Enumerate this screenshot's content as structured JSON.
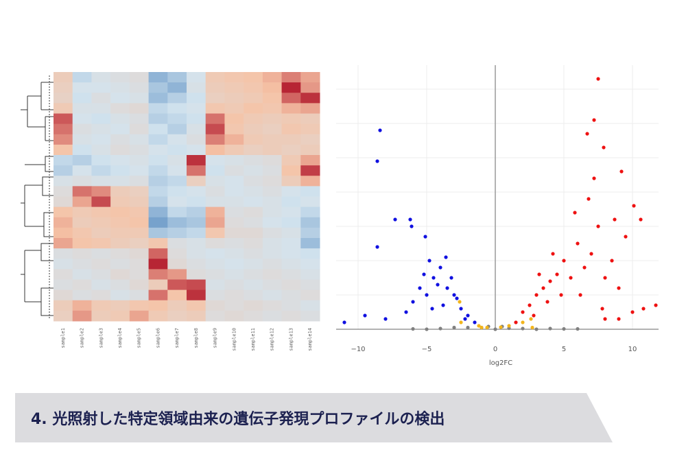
{
  "chart_data": [
    {
      "type": "heatmap",
      "categories": [
        "sample1",
        "sample2",
        "sample3",
        "sample4",
        "sample5",
        "sample6",
        "sample7",
        "sample8",
        "sample9",
        "sample10",
        "sample11",
        "sample12",
        "sample13",
        "sample14"
      ],
      "zlim": [
        -2,
        2
      ],
      "colors": [
        "#2b6cb0",
        "#d3e4ef",
        "#f6c3a6",
        "#b2182b"
      ],
      "values": [
        [
          0.3,
          -0.8,
          -0.5,
          -0.4,
          -0.3,
          -1.2,
          -1.0,
          -0.6,
          0.4,
          0.5,
          0.6,
          0.8,
          1.2,
          0.9
        ],
        [
          0.2,
          -0.6,
          -0.6,
          -0.5,
          -0.4,
          -1.0,
          -1.2,
          -0.5,
          0.3,
          0.4,
          0.5,
          0.7,
          1.9,
          1.0
        ],
        [
          0.1,
          -0.7,
          -0.4,
          -0.6,
          -0.5,
          -1.1,
          -0.9,
          -0.7,
          0.2,
          0.3,
          0.4,
          0.6,
          1.4,
          1.8
        ],
        [
          0.4,
          -0.5,
          -0.5,
          -0.3,
          -0.2,
          -0.8,
          -0.7,
          -0.6,
          0.5,
          0.4,
          0.6,
          0.5,
          0.8,
          0.9
        ],
        [
          1.5,
          -0.6,
          -0.7,
          -0.5,
          -0.4,
          -0.9,
          -0.8,
          -0.7,
          1.3,
          0.6,
          0.4,
          0.3,
          0.4,
          0.3
        ],
        [
          1.3,
          -0.4,
          -0.5,
          -0.6,
          -0.3,
          -0.7,
          -0.9,
          -0.5,
          1.6,
          0.5,
          0.3,
          0.2,
          0.5,
          0.4
        ],
        [
          1.1,
          -0.5,
          -0.6,
          -0.4,
          -0.5,
          -0.8,
          -0.6,
          -0.4,
          1.2,
          0.8,
          0.4,
          0.3,
          0.3,
          0.2
        ],
        [
          0.6,
          -0.7,
          -0.5,
          -0.3,
          -0.4,
          -0.6,
          -0.7,
          -0.6,
          0.7,
          0.4,
          0.2,
          0.3,
          0.2,
          0.3
        ],
        [
          -0.8,
          -0.9,
          -0.7,
          -0.6,
          -0.5,
          -0.7,
          -0.5,
          1.8,
          -0.6,
          -0.5,
          -0.4,
          -0.3,
          0.4,
          0.9
        ],
        [
          -0.9,
          -0.6,
          -0.8,
          -0.7,
          -0.6,
          -0.8,
          -0.6,
          1.3,
          -0.7,
          -0.4,
          -0.5,
          -0.4,
          0.6,
          1.7
        ],
        [
          -0.5,
          -0.4,
          -0.5,
          -0.5,
          -0.4,
          -0.9,
          -0.8,
          0.2,
          -0.5,
          -0.6,
          -0.4,
          -0.3,
          0.3,
          0.8
        ],
        [
          -0.3,
          1.3,
          1.1,
          0.3,
          0.2,
          -0.8,
          -0.7,
          -0.6,
          -0.4,
          -0.6,
          -0.5,
          -0.4,
          -0.6,
          -0.7
        ],
        [
          -0.2,
          0.9,
          1.6,
          0.4,
          0.3,
          -0.9,
          -0.6,
          -0.7,
          -0.5,
          -0.5,
          -0.6,
          -0.5,
          -0.7,
          -0.6
        ],
        [
          0.6,
          0.4,
          0.5,
          0.6,
          0.5,
          -1.2,
          -0.8,
          -0.9,
          0.8,
          -0.4,
          -0.3,
          -0.5,
          -0.6,
          -0.8
        ],
        [
          0.8,
          0.3,
          0.4,
          0.5,
          0.6,
          -1.4,
          -1.1,
          -1.0,
          0.9,
          -0.3,
          -0.4,
          -0.6,
          -0.7,
          -1.0
        ],
        [
          0.7,
          0.5,
          0.3,
          0.4,
          0.4,
          -1.0,
          -0.9,
          -0.8,
          0.5,
          -0.2,
          -0.2,
          -0.4,
          -0.5,
          -0.9
        ],
        [
          0.9,
          0.6,
          0.5,
          0.3,
          0.2,
          0.5,
          -0.4,
          -0.5,
          -0.3,
          -0.4,
          -0.3,
          -0.5,
          -0.6,
          -1.1
        ],
        [
          -0.4,
          -0.3,
          -0.4,
          -0.3,
          -0.2,
          1.4,
          -0.3,
          -0.5,
          -0.6,
          -0.5,
          -0.4,
          -0.5,
          -0.6,
          -0.7
        ],
        [
          -0.5,
          -0.4,
          -0.3,
          -0.4,
          -0.3,
          1.9,
          -0.2,
          -0.4,
          -0.5,
          -0.6,
          -0.5,
          -0.4,
          -0.5,
          -0.6
        ],
        [
          -0.3,
          -0.5,
          -0.4,
          -0.2,
          -0.3,
          1.2,
          1.0,
          -0.3,
          -0.4,
          -0.5,
          -0.4,
          -0.3,
          -0.4,
          -0.5
        ],
        [
          -0.4,
          -0.3,
          -0.5,
          -0.4,
          -0.2,
          0.3,
          1.5,
          1.6,
          -0.5,
          -0.4,
          -0.5,
          -0.4,
          -0.3,
          -0.4
        ],
        [
          -0.2,
          -0.4,
          -0.3,
          -0.5,
          -0.4,
          1.3,
          0.6,
          1.8,
          -0.4,
          -0.3,
          -0.4,
          -0.5,
          -0.4,
          -0.3
        ],
        [
          0.3,
          0.8,
          0.4,
          0.3,
          0.5,
          0.6,
          0.3,
          0.5,
          -0.2,
          -0.3,
          -0.2,
          -0.3,
          -0.4,
          -0.5
        ],
        [
          0.2,
          1.0,
          0.3,
          0.4,
          0.9,
          0.4,
          0.2,
          0.3,
          -0.3,
          -0.2,
          -0.3,
          -0.4,
          -0.3,
          -0.4
        ]
      ]
    },
    {
      "type": "scatter",
      "x_label": "log2FC",
      "xlim": [
        -11.6,
        11.9
      ],
      "ylim": [
        0,
        7.7
      ],
      "xticks": [
        {
          "value": -10,
          "label": "−10"
        },
        {
          "value": -5,
          "label": "−5"
        },
        0,
        5,
        10
      ],
      "grid": true,
      "series": [
        {
          "color": "#808080",
          "x": [
            -5,
            -4,
            -3,
            -2,
            -1,
            0,
            1,
            2,
            3,
            4,
            5,
            -6,
            6,
            -0.5,
            0.5
          ],
          "values": [
            0,
            0.02,
            0.05,
            0.05,
            0.05,
            0,
            0.03,
            0.02,
            0,
            0.02,
            0.01,
            0.01,
            0.01,
            0.08,
            0.08
          ]
        },
        {
          "color": "#1010e0",
          "x": [
            -11,
            -8.4,
            -8.6,
            -8.6,
            -7.3,
            -6.2,
            -6.1,
            -5.1,
            -9.5,
            -8,
            -6.5,
            -5,
            -4.5,
            -4,
            -3.5,
            -3,
            -2.5,
            -2,
            -1.5,
            -4.8,
            -4.2,
            -3.2,
            -5.5,
            -6,
            -3.8,
            -2.8,
            -4.6,
            -5.2,
            -3.6,
            -2.2
          ],
          "values": [
            0.2,
            5.8,
            4.9,
            2.4,
            3.2,
            3.2,
            3.0,
            2.7,
            0.4,
            0.3,
            0.5,
            1.0,
            1.5,
            1.8,
            1.2,
            1.0,
            0.6,
            0.4,
            0.2,
            2.0,
            1.3,
            1.5,
            1.2,
            0.8,
            0.7,
            0.9,
            0.6,
            1.6,
            2.1,
            0.3
          ]
        },
        {
          "color": "#ee1111",
          "x": [
            7.5,
            7.2,
            6.7,
            7.9,
            9.2,
            7.2,
            10.1,
            10.6,
            9.5,
            11.7,
            10.8,
            10,
            9,
            8,
            6,
            5,
            4.5,
            4,
            3.5,
            3,
            2.5,
            2,
            1.5,
            5.5,
            6.5,
            7,
            7.5,
            8.5,
            8,
            6.8,
            5.8,
            4.8,
            3.8,
            3.2,
            6.2,
            9,
            8.7,
            7.8,
            2.8,
            4.2
          ],
          "values": [
            7.3,
            6.1,
            5.7,
            5.3,
            4.6,
            4.4,
            3.6,
            3.2,
            2.7,
            0.7,
            0.6,
            0.5,
            0.3,
            0.3,
            2.5,
            2.0,
            1.6,
            1.4,
            1.2,
            1.0,
            0.7,
            0.5,
            0.2,
            1.5,
            1.8,
            2.2,
            3.0,
            2.0,
            1.5,
            3.8,
            3.4,
            1.0,
            0.8,
            1.6,
            1.0,
            1.2,
            3.2,
            0.6,
            0.4,
            2.2
          ]
        },
        {
          "color": "#f2b51c",
          "x": [
            -2.5,
            -1.2,
            -0.6,
            0.4,
            1,
            2,
            2.6,
            -2.6,
            2.7,
            -1
          ],
          "values": [
            0.2,
            0.1,
            0.05,
            0.06,
            0.1,
            0.2,
            0.3,
            0.8,
            0.05,
            0.05
          ]
        }
      ]
    }
  ],
  "caption": "4. 光照射した特定領域由来の遺伝子発現プロファイルの検出"
}
